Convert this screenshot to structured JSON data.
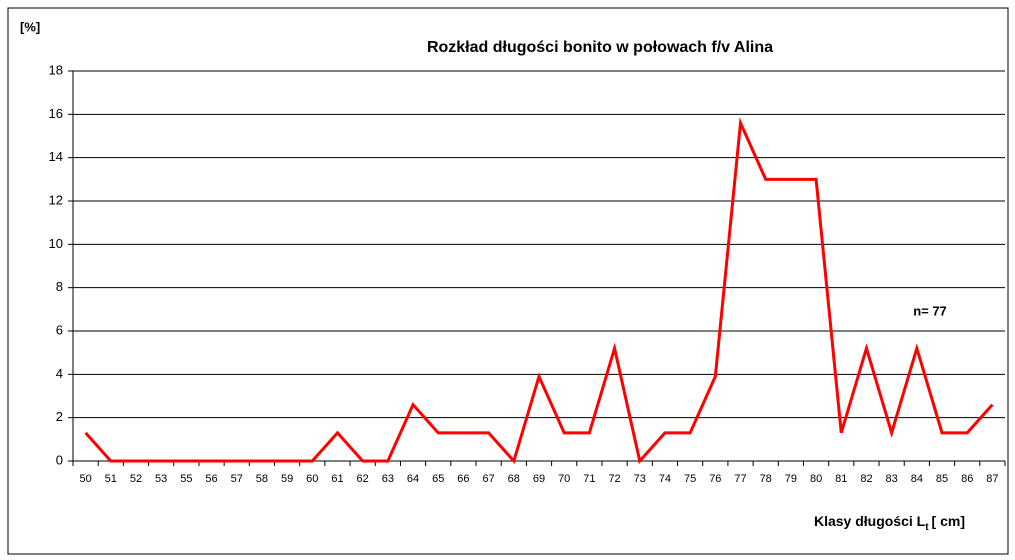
{
  "chart_data": {
    "type": "line",
    "title": "Rozkład długości bonito w połowach f/v Alina",
    "y_label": "[%]",
    "x_label": {
      "main": "Klasy długości L",
      "sub": "t",
      "unit": "[ cm]"
    },
    "annotation": "n= 77",
    "categories": [
      "50",
      "51",
      "52",
      "53",
      "55",
      "56",
      "57",
      "58",
      "59",
      "60",
      "61",
      "62",
      "63",
      "64",
      "65",
      "66",
      "67",
      "68",
      "69",
      "70",
      "71",
      "72",
      "73",
      "74",
      "75",
      "76",
      "77",
      "78",
      "79",
      "80",
      "81",
      "82",
      "83",
      "84",
      "85",
      "86",
      "87"
    ],
    "series": [
      {
        "name": "bonito",
        "color": "#ff0000",
        "values": [
          1.3,
          0,
          0,
          0,
          0,
          0,
          0,
          0,
          0,
          0,
          1.3,
          0,
          0,
          2.6,
          1.3,
          1.3,
          1.3,
          0,
          3.9,
          1.3,
          1.3,
          5.2,
          0,
          1.3,
          1.3,
          3.9,
          15.6,
          13,
          13,
          13,
          1.3,
          5.2,
          1.3,
          5.2,
          1.3,
          1.3,
          2.6
        ]
      }
    ],
    "ylim": [
      0,
      18
    ],
    "yticks": [
      0,
      2,
      4,
      6,
      8,
      10,
      12,
      14,
      16,
      18
    ],
    "grid": true
  }
}
